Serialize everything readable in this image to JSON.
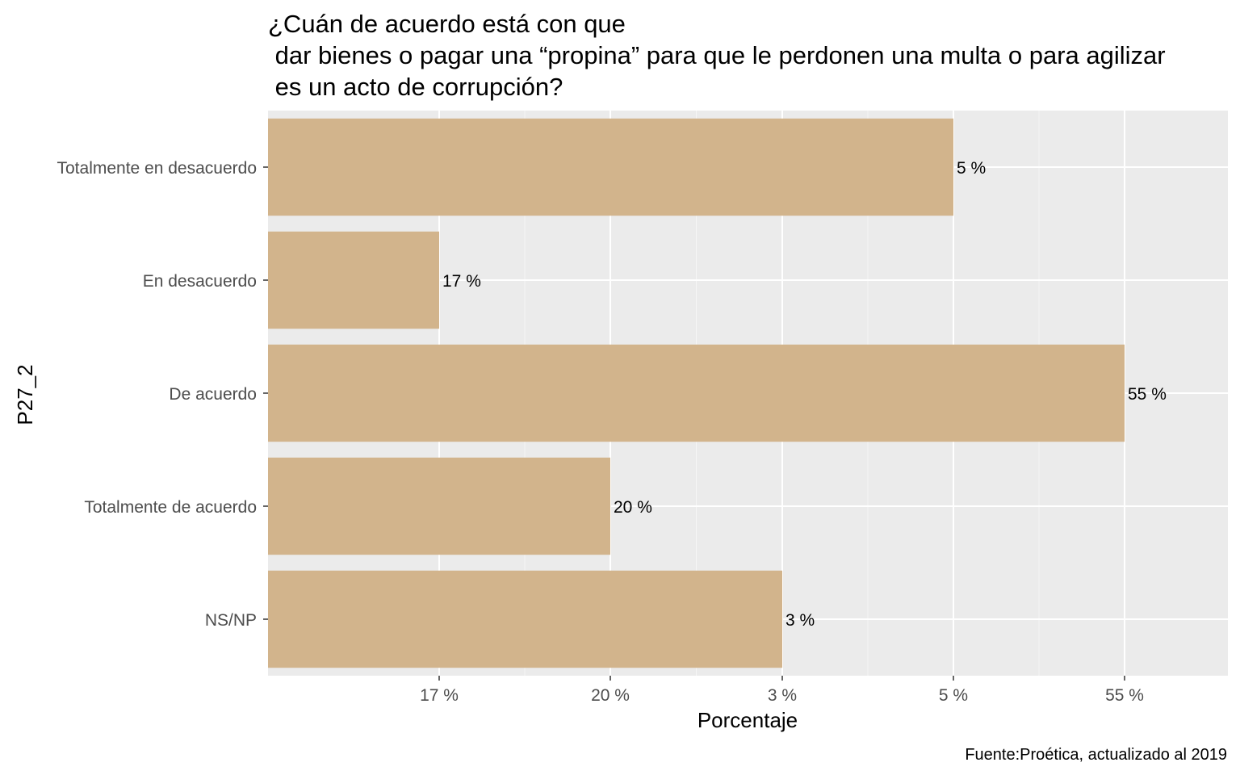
{
  "chart_data": {
    "type": "bar",
    "orientation": "horizontal",
    "title": "¿Cuán de acuerdo está con que\n dar bienes o pagar una “propina” para que le perdonen una multa o para agilizar\n es un acto de corrupción?",
    "xlabel": "Porcentaje",
    "ylabel": "P27_2",
    "caption": "Fuente:Proética, actualizado al 2019",
    "categories": [
      "Totalmente en desacuerdo",
      "En desacuerdo",
      "De acuerdo",
      "Totalmente de acuerdo",
      "NS/NP"
    ],
    "value_labels": [
      "5 %",
      "17 %",
      "55 %",
      "20 %",
      "3 %"
    ],
    "x_tick_labels": [
      "17 %",
      "20 %",
      "3 %",
      "5 %",
      "55 %"
    ],
    "bar_color": "#d2b48c",
    "panel_background": "#ebebeb",
    "grid": true
  }
}
